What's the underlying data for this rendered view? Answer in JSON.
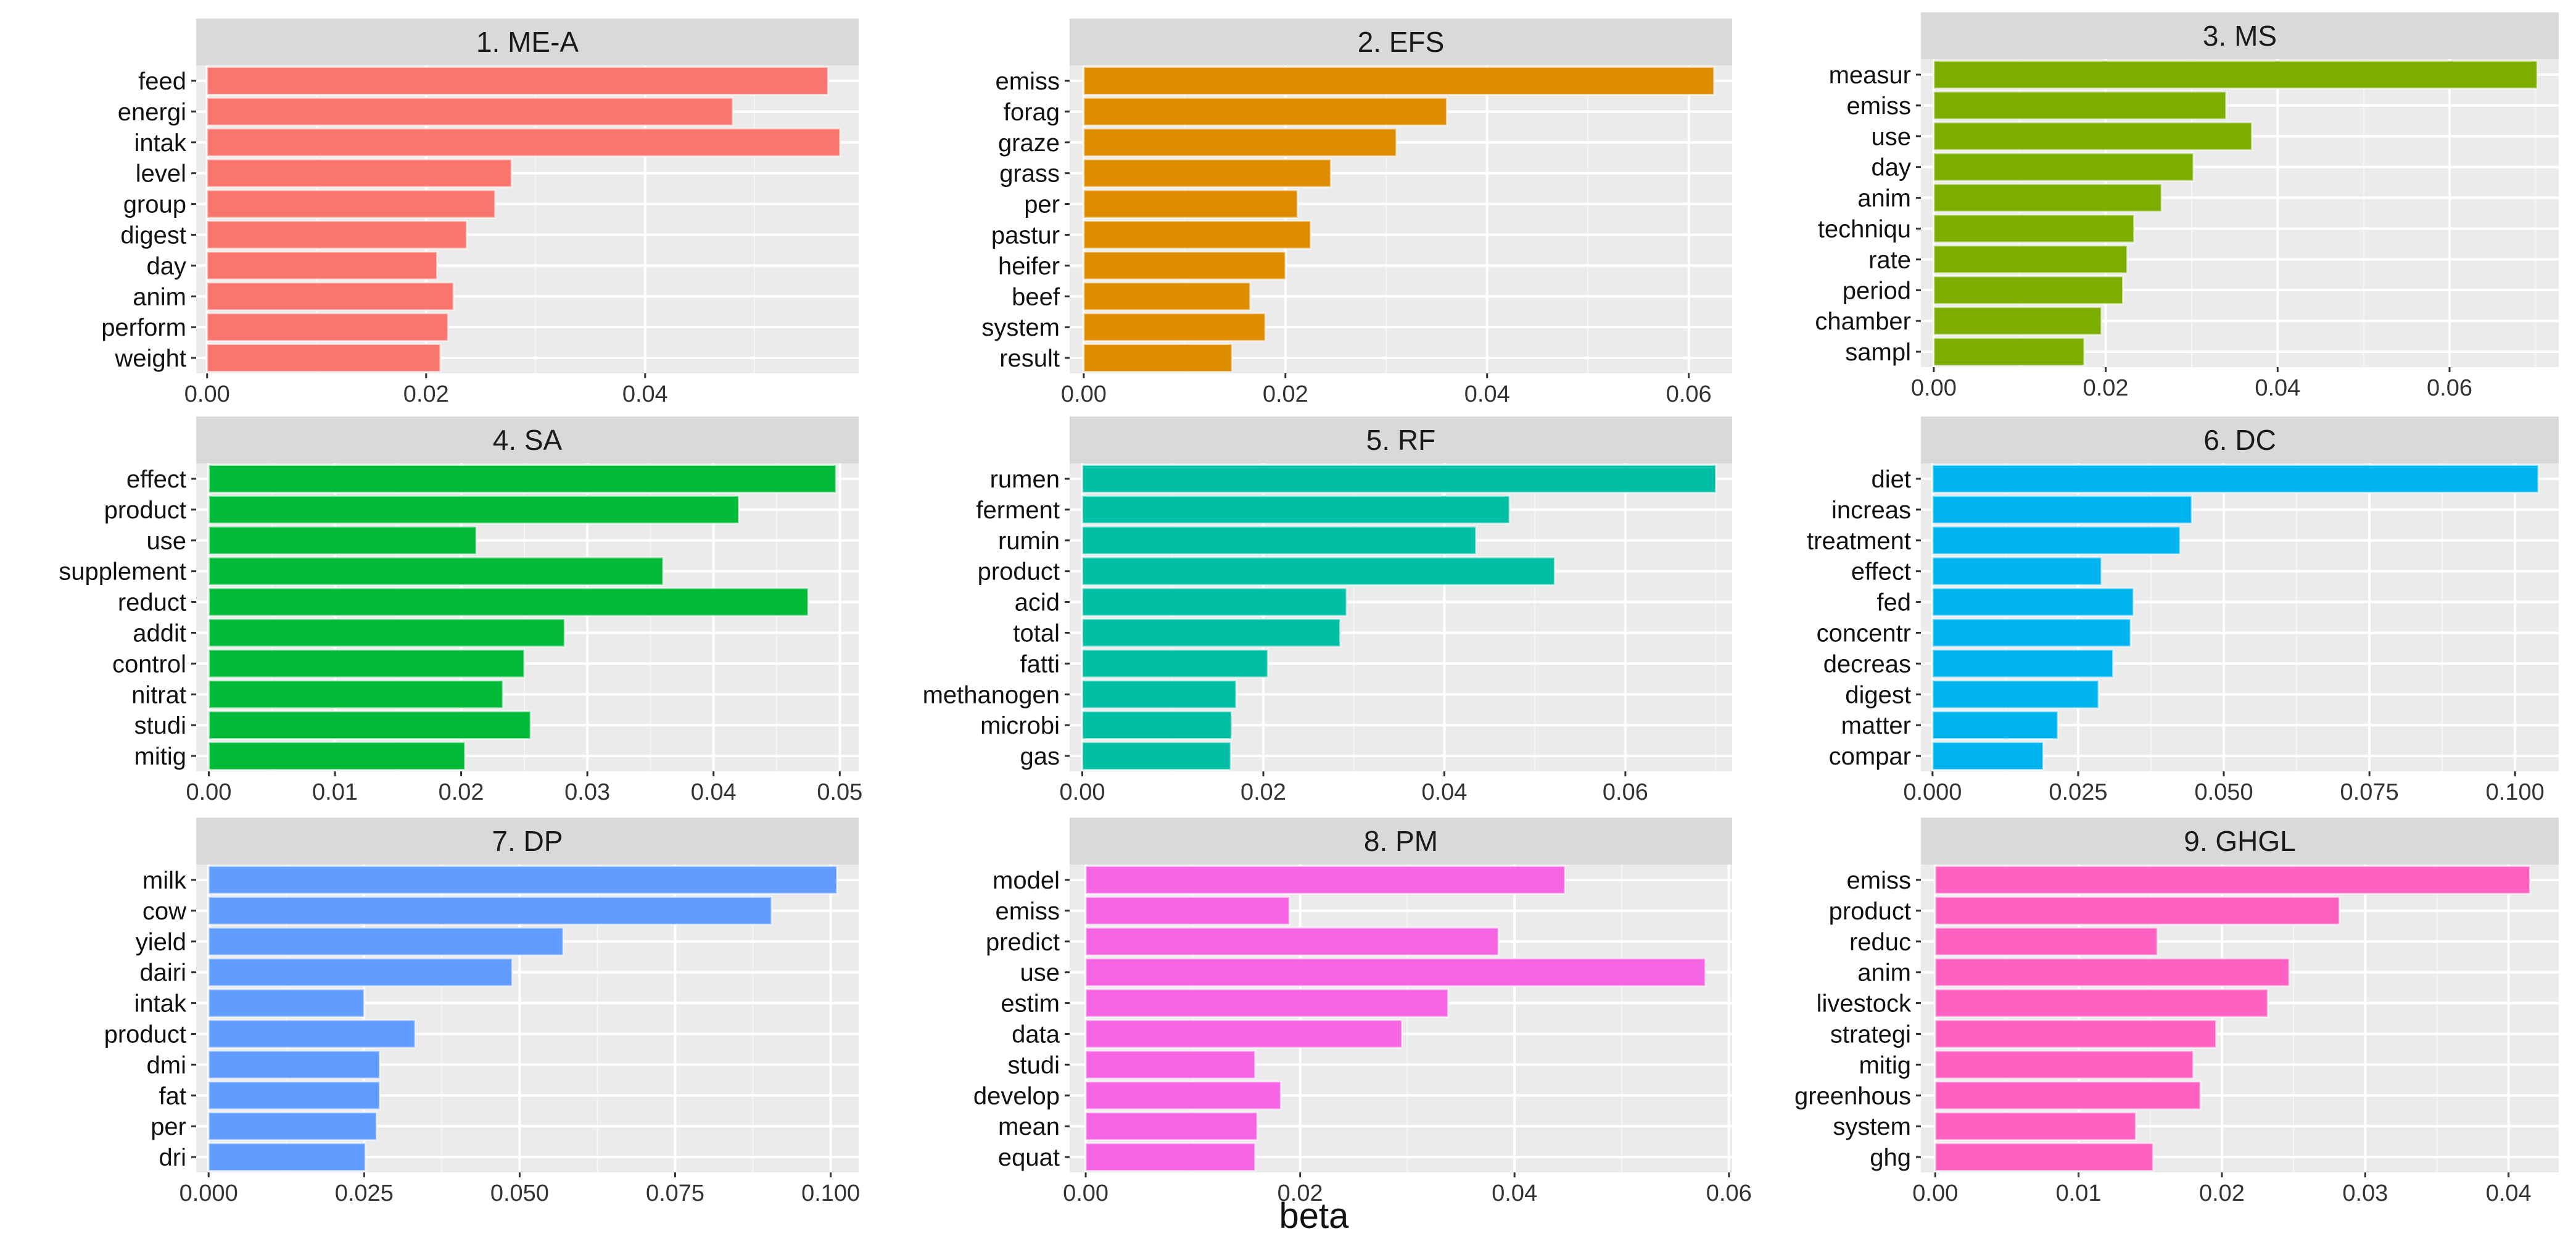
{
  "figure": {
    "xlabel": "beta"
  },
  "chart_data": [
    {
      "type": "bar",
      "orientation": "horizontal",
      "title": "1. ME-A",
      "color": "#F8766D",
      "categories": [
        "feed",
        "energi",
        "intak",
        "level",
        "group",
        "digest",
        "day",
        "anim",
        "perform",
        "weight"
      ],
      "values": [
        0.0567,
        0.048,
        0.0578,
        0.0278,
        0.0263,
        0.0237,
        0.021,
        0.0225,
        0.022,
        0.0213
      ],
      "xlim": [
        -0.001,
        0.0595
      ],
      "xticks": [
        0,
        0.02,
        0.04
      ],
      "xtick_labels": [
        "0.00",
        "0.02",
        "0.04"
      ]
    },
    {
      "type": "bar",
      "orientation": "horizontal",
      "title": "2. EFS",
      "color": "#DE8C00",
      "categories": [
        "emiss",
        "forag",
        "graze",
        "grass",
        "per",
        "pastur",
        "heifer",
        "beef",
        "system",
        "result"
      ],
      "values": [
        0.0625,
        0.036,
        0.031,
        0.0245,
        0.0212,
        0.0225,
        0.02,
        0.0165,
        0.018,
        0.0147
      ],
      "xlim": [
        -0.0014,
        0.0643
      ],
      "xticks": [
        0,
        0.02,
        0.04,
        0.06
      ],
      "xtick_labels": [
        "0.00",
        "0.02",
        "0.04",
        "0.06"
      ]
    },
    {
      "type": "bar",
      "orientation": "horizontal",
      "title": "3. MS",
      "color": "#7CAE00",
      "categories": [
        "measur",
        "emiss",
        "use",
        "day",
        "anim",
        "techniqu",
        "rate",
        "period",
        "chamber",
        "sampl"
      ],
      "values": [
        0.0702,
        0.034,
        0.037,
        0.0302,
        0.0265,
        0.0233,
        0.0225,
        0.022,
        0.0195,
        0.0175
      ],
      "xlim": [
        -0.0015,
        0.0727
      ],
      "xticks": [
        0,
        0.02,
        0.04,
        0.06
      ],
      "xtick_labels": [
        "0.00",
        "0.02",
        "0.04",
        "0.06"
      ]
    },
    {
      "type": "bar",
      "orientation": "horizontal",
      "title": "4. SA",
      "color": "#00BA38",
      "categories": [
        "effect",
        "product",
        "use",
        "supplement",
        "reduct",
        "addit",
        "control",
        "nitrat",
        "studi",
        "mitig"
      ],
      "values": [
        0.0497,
        0.042,
        0.0212,
        0.036,
        0.0475,
        0.0282,
        0.025,
        0.0233,
        0.0255,
        0.0203
      ],
      "xlim": [
        -0.001,
        0.0515
      ],
      "xticks": [
        0,
        0.01,
        0.02,
        0.03,
        0.04,
        0.05
      ],
      "xtick_labels": [
        "0.00",
        "0.01",
        "0.02",
        "0.03",
        "0.04",
        "0.05"
      ]
    },
    {
      "type": "bar",
      "orientation": "horizontal",
      "title": "5. RF",
      "color": "#00BFA4",
      "categories": [
        "rumen",
        "ferment",
        "rumin",
        "product",
        "acid",
        "total",
        "fatti",
        "methanogen",
        "microbi",
        "gas"
      ],
      "values": [
        0.07,
        0.0472,
        0.0435,
        0.0522,
        0.0292,
        0.0285,
        0.0205,
        0.017,
        0.0165,
        0.0164
      ],
      "xlim": [
        -0.0014,
        0.0718
      ],
      "xticks": [
        0,
        0.02,
        0.04,
        0.06
      ],
      "xtick_labels": [
        "0.00",
        "0.02",
        "0.04",
        "0.06"
      ]
    },
    {
      "type": "bar",
      "orientation": "horizontal",
      "title": "6. DC",
      "color": "#00B4EF",
      "categories": [
        "diet",
        "increas",
        "treatment",
        "effect",
        "fed",
        "concentr",
        "decreas",
        "digest",
        "matter",
        "compar"
      ],
      "values": [
        0.104,
        0.0445,
        0.0425,
        0.029,
        0.0345,
        0.034,
        0.031,
        0.0285,
        0.0215,
        0.019
      ],
      "xlim": [
        -0.002,
        0.1075
      ],
      "xticks": [
        0,
        0.025,
        0.05,
        0.075,
        0.1
      ],
      "xtick_labels": [
        "0.000",
        "0.025",
        "0.050",
        "0.075",
        "0.100"
      ]
    },
    {
      "type": "bar",
      "orientation": "horizontal",
      "title": "7. DP",
      "color": "#619CFF",
      "categories": [
        "milk",
        "cow",
        "yield",
        "dairi",
        "intak",
        "product",
        "dmi",
        "fat",
        "per",
        "dri"
      ],
      "values": [
        0.101,
        0.0905,
        0.057,
        0.0488,
        0.025,
        0.0332,
        0.0275,
        0.0275,
        0.027,
        0.0252
      ],
      "xlim": [
        -0.002,
        0.1045
      ],
      "xticks": [
        0,
        0.025,
        0.05,
        0.075,
        0.1
      ],
      "xtick_labels": [
        "0.000",
        "0.025",
        "0.050",
        "0.075",
        "0.100"
      ]
    },
    {
      "type": "bar",
      "orientation": "horizontal",
      "title": "8. PM",
      "color": "#F564E3",
      "categories": [
        "model",
        "emiss",
        "predict",
        "use",
        "estim",
        "data",
        "studi",
        "develop",
        "mean",
        "equat"
      ],
      "values": [
        0.0447,
        0.019,
        0.0385,
        0.0578,
        0.0338,
        0.0295,
        0.0158,
        0.0182,
        0.016,
        0.0158
      ],
      "xlim": [
        -0.0015,
        0.0603
      ],
      "xticks": [
        0,
        0.02,
        0.04,
        0.06
      ],
      "xtick_labels": [
        "0.00",
        "0.02",
        "0.04",
        "0.06"
      ]
    },
    {
      "type": "bar",
      "orientation": "horizontal",
      "title": "9. GHGL",
      "color": "#FF61C3",
      "categories": [
        "emiss",
        "product",
        "reduc",
        "anim",
        "livestock",
        "strategi",
        "mitig",
        "greenhous",
        "system",
        "ghg"
      ],
      "values": [
        0.0415,
        0.0282,
        0.0155,
        0.0247,
        0.0232,
        0.0196,
        0.018,
        0.0185,
        0.014,
        0.0152
      ],
      "xlim": [
        -0.001,
        0.0435
      ],
      "xticks": [
        0,
        0.01,
        0.02,
        0.03,
        0.04
      ],
      "xtick_labels": [
        "0.00",
        "0.01",
        "0.02",
        "0.03",
        "0.04"
      ]
    }
  ]
}
